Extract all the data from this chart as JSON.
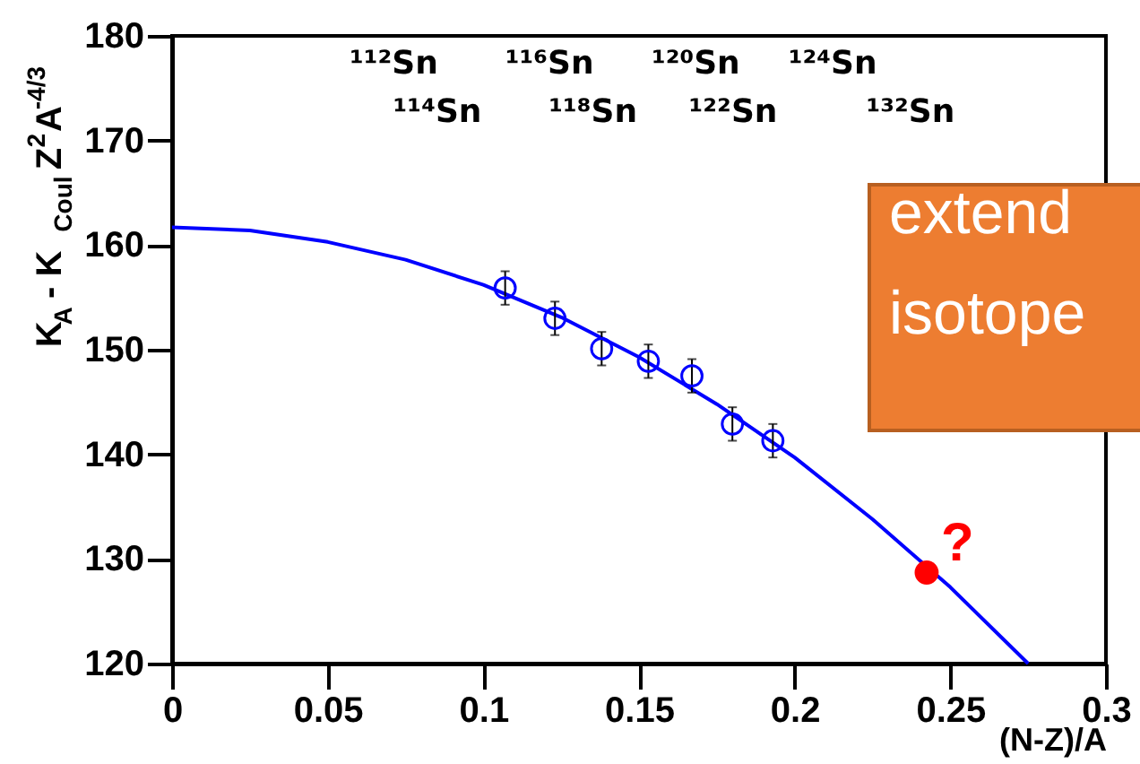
{
  "chart_data": {
    "type": "scatter",
    "ylabel": "K$_{A}$ - K$_{Coul}$Z$^{2}$A$^{-4/3}$",
    "xlabel": "(N-Z)/A",
    "xlim": [
      0,
      0.3
    ],
    "xticks": [
      0,
      0.05,
      0.1,
      0.15,
      0.2,
      0.25,
      0.3
    ],
    "ylim": [
      120,
      180
    ],
    "yticks": [
      120,
      130,
      140,
      150,
      160,
      170,
      180
    ],
    "grid": false,
    "marker": "circle",
    "series": [
      {
        "type": "line",
        "marker": "none",
        "color": "#0000ff",
        "x": [
          0,
          0.025,
          0.05,
          0.075,
          0.1,
          0.125,
          0.15,
          0.175,
          0.2,
          0.225,
          0.25,
          0.275
        ],
        "values": [
          161.7,
          161.4,
          160.3,
          158.6,
          156.2,
          153.1,
          149.3,
          144.8,
          139.7,
          133.8,
          127.3,
          120.0
        ]
      },
      {
        "color": "#0000ff",
        "x": [
          0.107,
          0.123,
          0.138,
          0.153,
          0.167,
          0.18,
          0.193
        ],
        "values": [
          155.9,
          153.0,
          150.1,
          148.9,
          147.5,
          142.9,
          141.3
        ],
        "errors": [
          1.6,
          1.6,
          1.6,
          1.6,
          1.6,
          1.6,
          1.6
        ]
      },
      {
        "color": "#ff0000",
        "x": [
          0.2424
        ],
        "values": [
          128.7
        ]
      }
    ],
    "annotations": [
      "¹¹²Sn",
      "¹¹⁶Sn",
      "¹²⁰Sn",
      "¹²⁴Sn",
      "¹¹⁴Sn",
      "¹¹⁸Sn",
      "¹²²Sn",
      "¹³²Sn",
      {
        "text": "?",
        "x": 0.2424,
        "y": 128.7
      },
      "extend",
      "isotope"
    ]
  }
}
